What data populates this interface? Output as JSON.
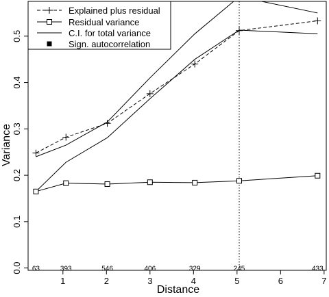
{
  "chart_data": {
    "type": "line",
    "xlabel": "Distance",
    "ylabel": "Variance",
    "xlim": [
      0.2,
      7.05
    ],
    "ylim": [
      -0.005,
      0.575
    ],
    "xticks": [
      1,
      2,
      3,
      4,
      5,
      6,
      7
    ],
    "yticks": [
      0.0,
      0.1,
      0.2,
      0.3,
      0.4,
      0.5
    ],
    "ytick_labels": [
      "0.0",
      "0.1",
      "0.2",
      "0.3",
      "0.4",
      "0.5"
    ],
    "vline_x": 5.05,
    "legend": {
      "position": "top-left",
      "entries": [
        "Explained plus residual",
        "Residual variance",
        "C.I. for total variance",
        "Sign. autocorrelation"
      ]
    },
    "series": [
      {
        "name": "Explained plus residual",
        "style": "dashed",
        "marker": "plus",
        "x": [
          0.38,
          1.07,
          2.02,
          3.0,
          4.03,
          5.05,
          6.85
        ],
        "y": [
          0.248,
          0.282,
          0.312,
          0.376,
          0.44,
          0.512,
          0.533
        ]
      },
      {
        "name": "Residual variance",
        "style": "solid",
        "marker": "square",
        "x": [
          0.38,
          1.07,
          2.02,
          3.0,
          4.03,
          5.05,
          6.85
        ],
        "y": [
          0.165,
          0.183,
          0.181,
          0.185,
          0.184,
          0.188,
          0.199
        ]
      },
      {
        "name": "C.I. for total variance",
        "style": "solid",
        "marker": "none",
        "role": "upper",
        "x": [
          0.38,
          1.07,
          2.02,
          3.0,
          4.03,
          5.05,
          6.85
        ],
        "y": [
          0.24,
          0.265,
          0.315,
          0.41,
          0.505,
          0.585,
          0.55
        ]
      },
      {
        "name": "C.I. for total variance",
        "style": "solid",
        "marker": "none",
        "role": "lower",
        "x": [
          0.38,
          1.07,
          2.02,
          3.0,
          4.03,
          5.05,
          6.85
        ],
        "y": [
          0.165,
          0.228,
          0.281,
          0.365,
          0.45,
          0.513,
          0.505
        ]
      }
    ],
    "count_labels": {
      "x": [
        0.38,
        1.07,
        2.02,
        3.0,
        4.03,
        5.05,
        6.85
      ],
      "labels": [
        "63",
        "393",
        "546",
        "406",
        "329",
        "245",
        "433"
      ],
      "y": 0.0
    }
  }
}
